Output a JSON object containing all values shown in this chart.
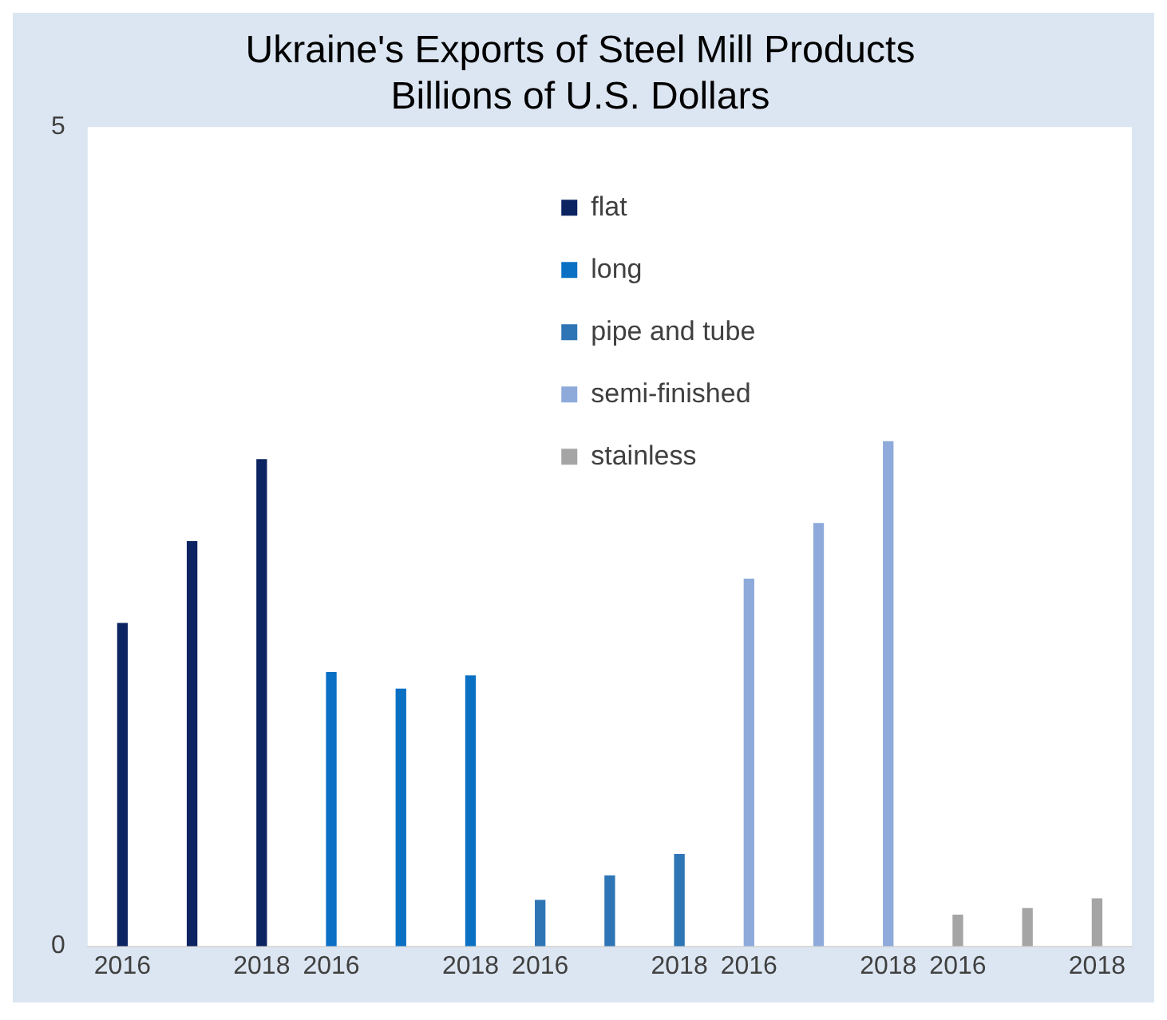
{
  "chart_data": {
    "type": "bar",
    "title": [
      "Ukraine's Exports of Steel Mill Products",
      "Billions of U.S. Dollars"
    ],
    "categories": [
      "2016",
      null,
      "2018",
      "2016",
      null,
      "2018",
      "2016",
      null,
      "2018",
      "2016",
      null,
      "2018",
      "2016",
      null,
      "2018"
    ],
    "series": [
      {
        "name": "flat",
        "color": "#0c2461",
        "values": [
          1.97,
          2.47,
          2.97,
          null,
          null,
          null,
          null,
          null,
          null,
          null,
          null,
          null,
          null,
          null,
          null
        ]
      },
      {
        "name": "long",
        "color": "#0a70c4",
        "values": [
          null,
          null,
          null,
          1.67,
          1.57,
          1.65,
          null,
          null,
          null,
          null,
          null,
          null,
          null,
          null,
          null
        ]
      },
      {
        "name": "pipe and tube",
        "color": "#2e75b6",
        "values": [
          null,
          null,
          null,
          null,
          null,
          null,
          0.28,
          0.43,
          0.56,
          null,
          null,
          null,
          null,
          null,
          null
        ]
      },
      {
        "name": "semi-finished",
        "color": "#8eaadb",
        "values": [
          null,
          null,
          null,
          null,
          null,
          null,
          null,
          null,
          null,
          2.24,
          2.58,
          3.08,
          null,
          null,
          null
        ]
      },
      {
        "name": "stainless",
        "color": "#a5a5a5",
        "values": [
          null,
          null,
          null,
          null,
          null,
          null,
          null,
          null,
          null,
          null,
          null,
          null,
          0.19,
          0.23,
          0.29
        ]
      }
    ],
    "ylim": [
      0,
      5
    ],
    "yticks": [
      0,
      5
    ],
    "grid": false,
    "legend": "top"
  }
}
